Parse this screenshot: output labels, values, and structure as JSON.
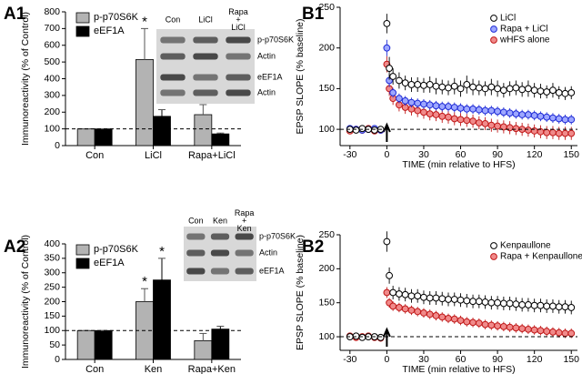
{
  "chart_data": [
    {
      "type": "bar",
      "panel_label": "A1",
      "ylabel": "Immunoreactivity (% of Control)",
      "categories": [
        "Con",
        "LiCl",
        "Rapa+LiCl"
      ],
      "series": [
        {
          "name": "p-p70S6K",
          "color": "#b3b3b3",
          "values": [
            100,
            515,
            185
          ],
          "errors": [
            0,
            185,
            60
          ],
          "significance": [
            null,
            "*",
            null
          ]
        },
        {
          "name": "eEF1A",
          "color": "#000000",
          "values": [
            100,
            175,
            70
          ],
          "errors": [
            0,
            40,
            5
          ],
          "significance": [
            null,
            "*",
            null
          ]
        }
      ],
      "ylim": [
        0,
        800
      ],
      "yticks": [
        0,
        100,
        200,
        300,
        400,
        500,
        600,
        700,
        800
      ],
      "reference_line": 100,
      "legend": "upper left",
      "inset_columns": [
        "Con",
        "LiCl",
        [
          "Rapa",
          "+",
          "LiCl"
        ]
      ],
      "inset_rows": [
        "p-p70S6K",
        "Actin",
        "eEF1A",
        "Actin"
      ]
    },
    {
      "type": "scatter",
      "panel_label": "B1",
      "ylabel": "EPSP SLOPE (% baseline)",
      "xlabel": "TIME (min relative to HFS)",
      "x": [
        -30,
        -25,
        -20,
        -15,
        -10,
        -5,
        0,
        2,
        5,
        10,
        15,
        20,
        25,
        30,
        35,
        40,
        45,
        50,
        55,
        60,
        65,
        70,
        75,
        80,
        85,
        90,
        95,
        100,
        105,
        110,
        115,
        120,
        125,
        130,
        135,
        140,
        145,
        150
      ],
      "series": [
        {
          "name": "LiCl",
          "color": "#ffffff",
          "edgecolor": "#000000",
          "values": [
            100,
            99,
            101,
            100,
            99,
            100,
            230,
            175,
            165,
            160,
            157,
            155,
            155,
            154,
            155,
            153,
            152,
            151,
            153,
            150,
            155,
            152,
            151,
            150,
            152,
            150,
            148,
            150,
            151,
            149,
            150,
            148,
            147,
            146,
            148,
            145,
            144,
            145
          ],
          "errors": [
            3,
            3,
            3,
            3,
            3,
            3,
            12,
            14,
            10,
            10,
            9,
            9,
            9,
            9,
            10,
            10,
            9,
            9,
            10,
            10,
            11,
            10,
            9,
            9,
            10,
            10,
            9,
            9,
            9,
            9,
            10,
            9,
            9,
            8,
            9,
            8,
            8,
            8
          ]
        },
        {
          "name": "Rapa + LiCl",
          "color": "#9da7ff",
          "edgecolor": "#1f2bd6",
          "values": [
            101,
            100,
            99,
            100,
            101,
            99,
            200,
            160,
            145,
            138,
            135,
            133,
            132,
            131,
            130,
            129,
            128,
            128,
            127,
            126,
            125,
            125,
            124,
            123,
            123,
            122,
            121,
            120,
            119,
            118,
            118,
            117,
            116,
            115,
            114,
            113,
            112,
            112
          ],
          "errors": [
            3,
            3,
            3,
            3,
            3,
            3,
            10,
            8,
            6,
            6,
            6,
            6,
            6,
            6,
            6,
            6,
            6,
            6,
            6,
            6,
            6,
            6,
            6,
            6,
            6,
            6,
            6,
            6,
            6,
            6,
            6,
            6,
            6,
            6,
            6,
            6,
            6,
            6
          ]
        },
        {
          "name": "wHFS alone",
          "color": "#f08a8a",
          "edgecolor": "#c01818",
          "values": [
            98,
            100,
            99,
            101,
            98,
            99,
            180,
            150,
            138,
            130,
            127,
            125,
            123,
            121,
            119,
            118,
            116,
            115,
            113,
            112,
            111,
            110,
            108,
            107,
            105,
            104,
            103,
            102,
            101,
            100,
            99,
            98,
            97,
            96,
            96,
            95,
            95,
            95
          ],
          "errors": [
            3,
            3,
            3,
            3,
            3,
            3,
            10,
            9,
            8,
            8,
            8,
            8,
            8,
            8,
            8,
            8,
            8,
            8,
            8,
            8,
            8,
            8,
            8,
            8,
            8,
            8,
            8,
            8,
            8,
            8,
            8,
            8,
            8,
            8,
            8,
            8,
            8,
            8
          ]
        }
      ],
      "xlim": [
        -38,
        155
      ],
      "xticks": [
        -30,
        0,
        30,
        60,
        90,
        120,
        150
      ],
      "ylim": [
        80,
        250
      ],
      "yticks": [
        100,
        150,
        200,
        250
      ],
      "reference_line": 100,
      "legend": "upper right"
    },
    {
      "type": "bar",
      "panel_label": "A2",
      "ylabel": "Immunoreactivity (% of Control)",
      "categories": [
        "Con",
        "Ken",
        "Rapa+Ken"
      ],
      "series": [
        {
          "name": "p-p70S6K",
          "color": "#b3b3b3",
          "values": [
            100,
            200,
            65
          ],
          "errors": [
            0,
            45,
            25
          ],
          "significance": [
            null,
            "*",
            null
          ]
        },
        {
          "name": "eEF1A",
          "color": "#000000",
          "values": [
            100,
            275,
            105
          ],
          "errors": [
            0,
            75,
            10
          ],
          "significance": [
            null,
            "*",
            null
          ]
        }
      ],
      "ylim": [
        0,
        400
      ],
      "yticks": [
        0,
        50,
        100,
        150,
        200,
        250,
        300,
        350,
        400
      ],
      "reference_line": 100,
      "legend": "upper left",
      "inset_columns": [
        "Con",
        "Ken",
        [
          "Rapa",
          "+",
          "Ken"
        ]
      ],
      "inset_rows": [
        "p-p70S6K",
        "Actin",
        "eEF1A"
      ]
    },
    {
      "type": "scatter",
      "panel_label": "B2",
      "ylabel": "EPSP SLOPE (% baseline)",
      "xlabel": "TIME (min relative to HFS)",
      "x": [
        -30,
        -25,
        -20,
        -15,
        -10,
        -5,
        0,
        2,
        5,
        10,
        15,
        20,
        25,
        30,
        35,
        40,
        45,
        50,
        55,
        60,
        65,
        70,
        75,
        80,
        85,
        90,
        95,
        100,
        105,
        110,
        115,
        120,
        125,
        130,
        135,
        140,
        145,
        150
      ],
      "series": [
        {
          "name": "Kenpaullone",
          "color": "#ffffff",
          "edgecolor": "#000000",
          "values": [
            100,
            101,
            99,
            100,
            100,
            99,
            240,
            190,
            165,
            163,
            162,
            160,
            160,
            158,
            157,
            157,
            156,
            155,
            155,
            154,
            153,
            152,
            152,
            151,
            150,
            150,
            149,
            149,
            148,
            147,
            147,
            146,
            146,
            145,
            145,
            144,
            144,
            143
          ],
          "errors": [
            3,
            3,
            3,
            3,
            3,
            3,
            15,
            12,
            10,
            10,
            10,
            10,
            10,
            10,
            10,
            10,
            10,
            10,
            10,
            10,
            10,
            10,
            10,
            10,
            10,
            10,
            10,
            10,
            10,
            10,
            10,
            10,
            10,
            10,
            10,
            10,
            10,
            10
          ]
        },
        {
          "name": "Rapa + Kenpaullone",
          "color": "#f08a8a",
          "edgecolor": "#c01818",
          "values": [
            101,
            99,
            100,
            101,
            99,
            98,
            165,
            150,
            145,
            143,
            141,
            139,
            137,
            135,
            133,
            131,
            129,
            127,
            126,
            124,
            122,
            121,
            120,
            118,
            117,
            116,
            115,
            114,
            113,
            112,
            111,
            110,
            109,
            108,
            107,
            106,
            105,
            105
          ],
          "errors": [
            3,
            3,
            3,
            3,
            3,
            3,
            8,
            7,
            7,
            7,
            7,
            7,
            7,
            7,
            7,
            7,
            7,
            7,
            7,
            7,
            7,
            7,
            7,
            7,
            7,
            7,
            7,
            7,
            7,
            7,
            7,
            7,
            7,
            7,
            7,
            7,
            7,
            7
          ]
        }
      ],
      "xlim": [
        -38,
        155
      ],
      "xticks": [
        -30,
        0,
        30,
        60,
        90,
        120,
        150
      ],
      "ylim": [
        80,
        250
      ],
      "yticks": [
        100,
        150,
        200,
        250
      ],
      "reference_line": 100,
      "legend": "upper right"
    }
  ]
}
